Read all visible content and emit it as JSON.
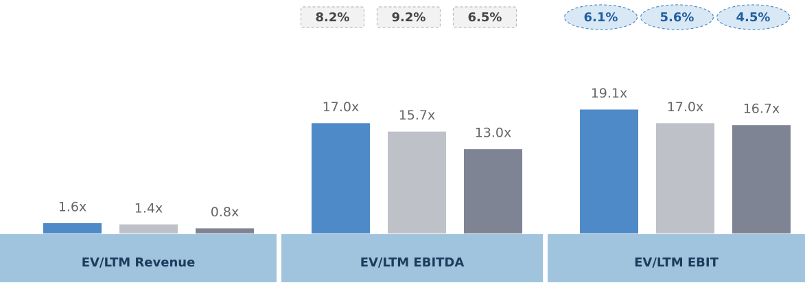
{
  "chart_data": {
    "type": "bar",
    "categories": [
      "EV/LTM Revenue",
      "EV/LTM EBITDA",
      "EV/LTM EBIT"
    ],
    "series": [
      {
        "color": "#4e8ac8",
        "values": [
          1.6,
          17.0,
          19.1
        ],
        "value_labels": [
          "1.6x",
          "17.0x",
          "19.1x"
        ]
      },
      {
        "color": "#bfc1c9",
        "values": [
          1.4,
          15.7,
          17.0
        ],
        "value_labels": [
          "1.4x",
          "15.7x",
          "17.0x"
        ]
      },
      {
        "color": "#7e8494",
        "values": [
          0.8,
          13.0,
          16.7
        ],
        "value_labels": [
          "0.8x",
          "13.0x",
          "16.7x"
        ]
      }
    ],
    "ylim": [
      0,
      20
    ],
    "badges": [
      null,
      [
        "8.2%",
        "9.2%",
        "6.5%"
      ],
      [
        "6.1%",
        "5.6%",
        "4.5%"
      ]
    ],
    "badge_styles": [
      null,
      "box",
      "oval"
    ]
  }
}
